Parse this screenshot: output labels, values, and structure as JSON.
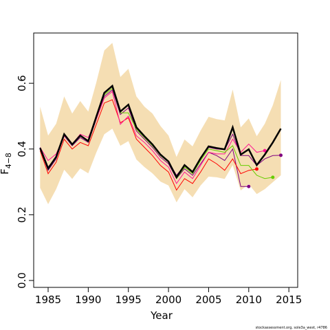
{
  "chart_data": {
    "type": "line",
    "xlabel": "Year",
    "ylabel": {
      "main": "F",
      "sub": "4−8"
    },
    "footnote": "stockassessment.org, sole3a_west, r4786",
    "x": [
      1984,
      1985,
      1986,
      1987,
      1988,
      1989,
      1990,
      1991,
      1992,
      1993,
      1994,
      1995,
      1996,
      1997,
      1998,
      1999,
      2000,
      2001,
      2002,
      2003,
      2004,
      2005,
      2006,
      2007,
      2008,
      2009,
      2010,
      2011,
      2012,
      2013,
      2014
    ],
    "band": {
      "color": "#f5deb3",
      "upper": [
        0.529,
        0.441,
        0.477,
        0.56,
        0.508,
        0.546,
        0.514,
        0.602,
        0.7,
        0.723,
        0.619,
        0.644,
        0.56,
        0.529,
        0.508,
        0.47,
        0.441,
        0.376,
        0.429,
        0.408,
        0.456,
        0.498,
        0.491,
        0.487,
        0.581,
        0.466,
        0.493,
        0.439,
        0.477,
        0.533,
        0.61
      ],
      "lower": [
        0.282,
        0.232,
        0.278,
        0.337,
        0.309,
        0.341,
        0.326,
        0.389,
        0.445,
        0.462,
        0.41,
        0.424,
        0.368,
        0.345,
        0.326,
        0.301,
        0.289,
        0.238,
        0.278,
        0.253,
        0.289,
        0.316,
        0.314,
        0.309,
        0.351,
        0.274,
        0.293,
        0.263,
        0.278,
        0.299,
        0.32
      ]
    },
    "series": [
      {
        "color": "#800080",
        "values": [
          0.4,
          0.335,
          0.37,
          0.44,
          0.41,
          0.435,
          0.42,
          0.49,
          0.56,
          0.58,
          0.505,
          0.525,
          0.455,
          0.43,
          0.405,
          0.375,
          0.355,
          0.31,
          0.34,
          0.32,
          0.355,
          0.39,
          0.38,
          0.365,
          0.4,
          0.286,
          0.286,
          null,
          null,
          null,
          null
        ]
      },
      {
        "color": "#ff0000",
        "values": [
          0.395,
          0.325,
          0.36,
          0.43,
          0.4,
          0.42,
          0.41,
          0.475,
          0.54,
          0.55,
          0.48,
          0.495,
          0.43,
          0.405,
          0.38,
          0.35,
          0.33,
          0.275,
          0.31,
          0.295,
          0.33,
          0.37,
          0.355,
          0.335,
          0.37,
          0.325,
          0.335,
          0.339,
          null,
          null,
          null
        ]
      },
      {
        "color": "#ff1493",
        "values": [
          0.405,
          0.365,
          0.385,
          0.44,
          0.415,
          0.445,
          0.435,
          0.49,
          0.555,
          0.575,
          0.475,
          0.5,
          0.44,
          0.42,
          0.395,
          0.365,
          0.345,
          0.295,
          0.33,
          0.31,
          0.35,
          0.39,
          0.385,
          0.385,
          0.43,
          0.39,
          0.415,
          0.39,
          0.395,
          null,
          null
        ]
      },
      {
        "color": "#66cd00",
        "values": [
          0.4,
          0.34,
          0.375,
          0.445,
          0.415,
          0.44,
          0.425,
          0.495,
          0.565,
          0.585,
          0.51,
          0.51,
          0.46,
          0.435,
          0.41,
          0.38,
          0.36,
          0.31,
          0.345,
          0.325,
          0.365,
          0.4,
          0.395,
          0.39,
          0.41,
          0.35,
          0.35,
          0.32,
          0.31,
          0.314,
          null
        ]
      },
      {
        "color": "#800080",
        "values": [
          0.405,
          0.345,
          0.375,
          0.445,
          0.415,
          0.44,
          0.425,
          0.5,
          0.57,
          0.59,
          0.515,
          0.535,
          0.465,
          0.44,
          0.415,
          0.385,
          0.362,
          0.32,
          0.35,
          0.33,
          0.37,
          0.405,
          0.4,
          0.398,
          0.445,
          0.38,
          0.38,
          0.35,
          0.37,
          0.38,
          0.381
        ]
      },
      {
        "color": "#000000",
        "values": [
          0.403,
          0.341,
          0.376,
          0.445,
          0.414,
          0.441,
          0.424,
          0.498,
          0.571,
          0.592,
          0.514,
          0.535,
          0.466,
          0.439,
          0.414,
          0.383,
          0.362,
          0.314,
          0.351,
          0.33,
          0.372,
          0.408,
          0.403,
          0.399,
          0.466,
          0.383,
          0.399,
          0.351,
          0.383,
          0.42,
          0.462
        ]
      }
    ],
    "xlim": [
      1983.2,
      2016.1
    ],
    "ylim": [
      -0.021,
      0.753
    ],
    "xticks": [
      1985,
      1990,
      1995,
      2000,
      2005,
      2010,
      2015
    ],
    "yticks": [
      {
        "value": 0,
        "label": "0.0"
      },
      0.2,
      0.4,
      0.6
    ]
  }
}
